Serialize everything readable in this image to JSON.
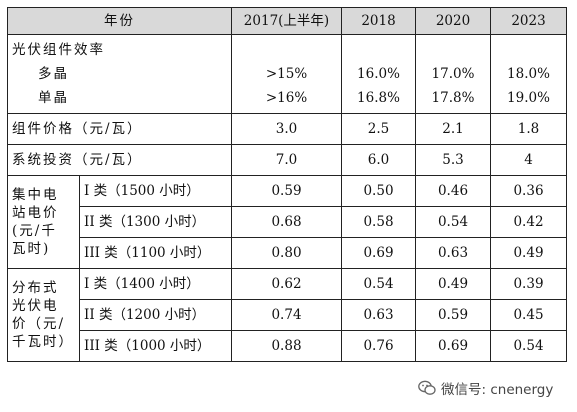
{
  "header": [
    "年份",
    "2017(上半年)",
    "2018",
    "2020",
    "2023"
  ],
  "efficiency": {
    "label": "光伏组件效率",
    "rows": [
      {
        "label": "多晶",
        "values": [
          ">15%",
          "16.0%",
          "17.0%",
          "18.0%"
        ]
      },
      {
        "label": "单晶",
        "values": [
          ">16%",
          "16.8%",
          "17.8%",
          "19.0%"
        ]
      }
    ]
  },
  "price": {
    "label": "组件价格（元/瓦）",
    "values": [
      "3.0",
      "2.5",
      "2.1",
      "1.8"
    ]
  },
  "investment": {
    "label": "系统投资（元/瓦）",
    "values": [
      "7.0",
      "6.0",
      "5.3",
      "4"
    ]
  },
  "central": {
    "label_lines": [
      "集中电",
      "站电价",
      "(元/千",
      "瓦时)"
    ],
    "rows": [
      {
        "label": "I 类（1500 小时）",
        "values": [
          "0.59",
          "0.50",
          "0.46",
          "0.36"
        ]
      },
      {
        "label": "II 类（1300 小时）",
        "values": [
          "0.68",
          "0.58",
          "0.54",
          "0.42"
        ]
      },
      {
        "label": "III 类（1100 小时）",
        "values": [
          "0.80",
          "0.69",
          "0.63",
          "0.49"
        ]
      }
    ]
  },
  "distributed": {
    "label_lines": [
      "分布式",
      "光伏电",
      "价（元/",
      "千瓦时）"
    ],
    "rows": [
      {
        "label": "I 类（1400 小时）",
        "values": [
          "0.62",
          "0.54",
          "0.49",
          "0.39"
        ]
      },
      {
        "label": "II 类（1200 小时）",
        "values": [
          "0.74",
          "0.63",
          "0.59",
          "0.45"
        ]
      },
      {
        "label": "III 类（1000 小时）",
        "values": [
          "0.88",
          "0.76",
          "0.69",
          "0.54"
        ]
      }
    ]
  },
  "watermark": {
    "text": "微信号: cnenergy",
    "icon": "wechat-icon"
  }
}
